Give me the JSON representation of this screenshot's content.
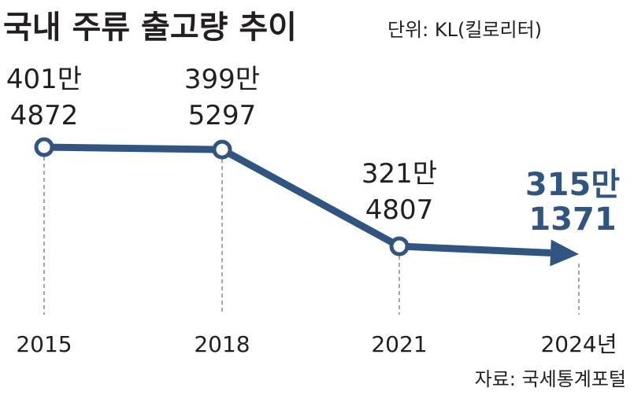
{
  "chart_data": {
    "type": "line",
    "title": "국내 주류 출고량 추이",
    "unit": "단위: KL(킬로리터)",
    "source": "자료: 국세통계포털",
    "categories": [
      "2015",
      "2018",
      "2021",
      "2024년"
    ],
    "values": [
      4014872,
      3995297,
      3214807,
      3151371
    ],
    "value_labels": [
      [
        "401만",
        "4872"
      ],
      [
        "399만",
        "5297"
      ],
      [
        "321만",
        "4807"
      ],
      [
        "315만",
        "1371"
      ]
    ],
    "ylabel": "KL",
    "grid": false,
    "colors": {
      "line": "#2f5583",
      "text": "#231f20",
      "dash": "#888888"
    }
  }
}
